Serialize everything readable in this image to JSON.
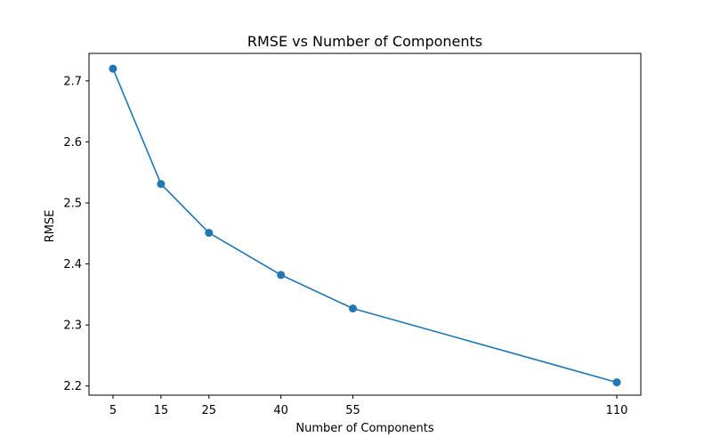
{
  "chart_data": {
    "type": "line",
    "title": "RMSE vs Number of Components",
    "xlabel": "Number of Components",
    "ylabel": "RMSE",
    "x": [
      5,
      15,
      25,
      40,
      55,
      110
    ],
    "series": [
      {
        "values": [
          2.72,
          2.531,
          2.451,
          2.382,
          2.327,
          2.206
        ],
        "color": "#1f77b4",
        "marker": "circle"
      }
    ],
    "xticks": [
      5,
      15,
      25,
      40,
      55,
      110
    ],
    "yticks": [
      2.2,
      2.3,
      2.4,
      2.5,
      2.6,
      2.7
    ],
    "xlim": [
      0,
      115
    ],
    "ylim": [
      2.185,
      2.745
    ],
    "grid": false,
    "legend": false
  }
}
